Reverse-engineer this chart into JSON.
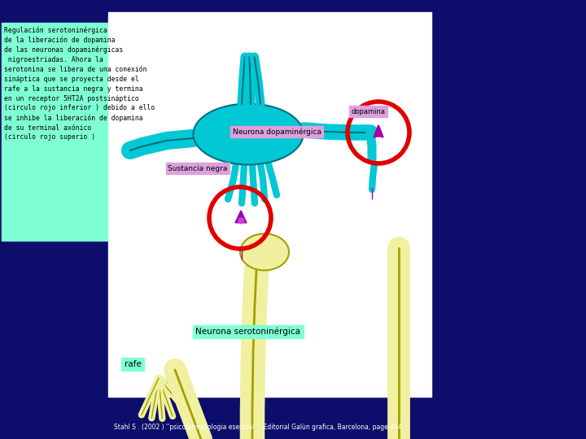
{
  "bg_color": "#0d0d6b",
  "diagram_bg": "#ffffff",
  "text_box_bg": "#7fffd4",
  "text_box_text": "Regulación serotoninérgica\nde la liberación de dopamina\nde las neuronas dopaminérgicas\n nigroestriadas. Ahora la\nserotonina se libera de una conexión\nsináptica que se proyecta desde el\nrafe a la sustancia negra y termina\nen un receptor 5HT2A postsináptico\n(circulo rojo inferior ) debido a ello\nse inhibe la liberación de dopamina\nde su terminal axónico\n(circulo rojo superio )",
  "citation": "Stahl S . (2002 ) ''psicofarmacologia esencial '' ,Editorial Galùn grafica, Barcelona, page 464",
  "label_dopaminergica": "Neurona dopaminérgica",
  "label_sustancia": "Sustancia negra",
  "label_dopamina": "dopamina",
  "label_serotonin": "Neurona serotoninérgica",
  "label_rafe": "rafe",
  "label_bg_purple": "#dda0dd",
  "label_bg_cyan": "#7fffd4",
  "cyan_neuron_color": "#00c8d4",
  "cyan_neuron_edge": "#007080",
  "yellow_neuron_color": "#f0f0a0",
  "yellow_neuron_edge": "#a0a000",
  "red_circle_color": "#e00000",
  "magenta_color": "#aa00aa"
}
